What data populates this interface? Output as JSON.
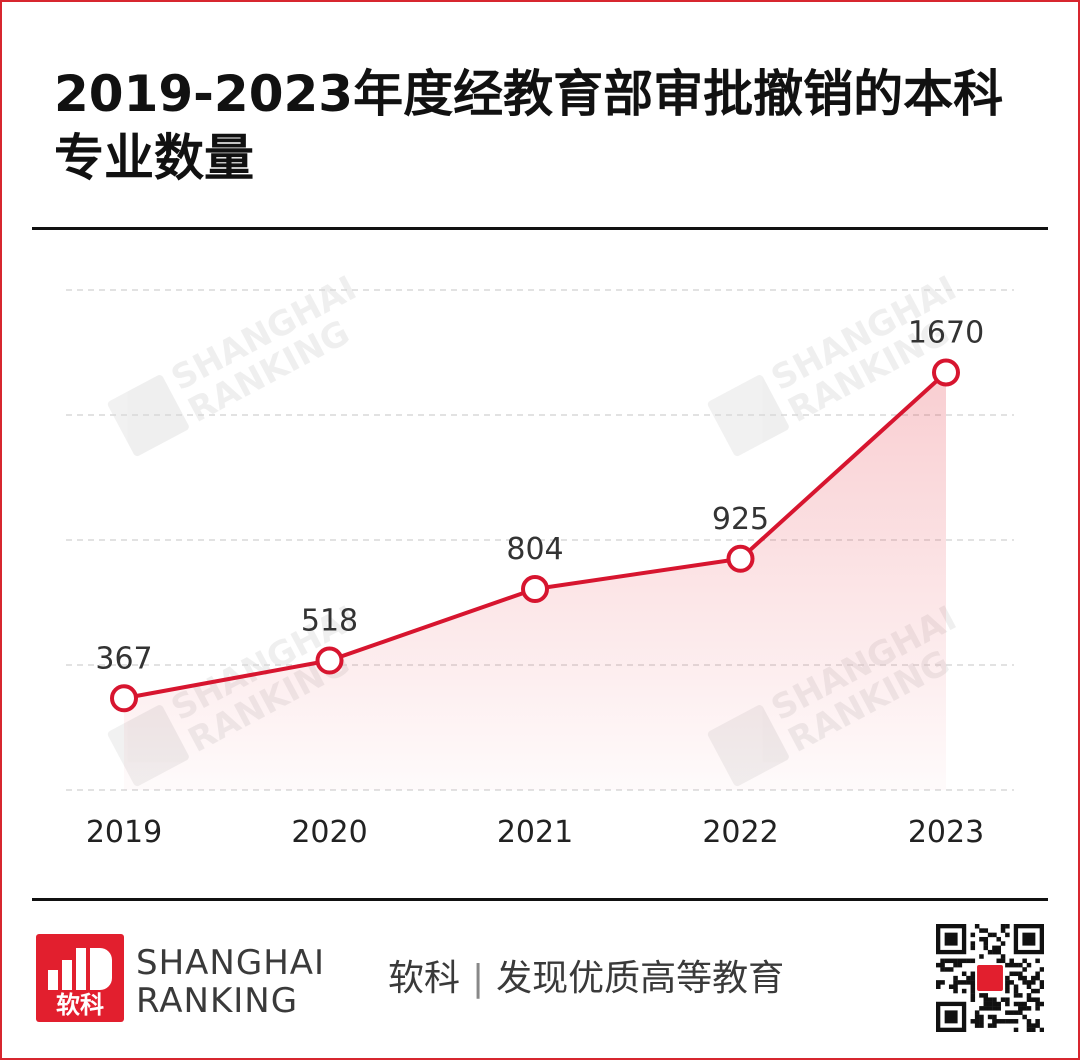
{
  "title": "2019-2023年度经教育部审批撤销的本科专业数量",
  "chart_data": {
    "type": "area",
    "title": "2019-2023年度经教育部审批撤销的本科专业数量",
    "categories": [
      "2019",
      "2020",
      "2021",
      "2022",
      "2023"
    ],
    "values": [
      367,
      518,
      804,
      925,
      1670
    ],
    "data_labels": [
      "367",
      "518",
      "804",
      "925",
      "1670"
    ],
    "ylim": [
      0,
      2000
    ],
    "grid": "horizontal dashed",
    "legend": "none",
    "line_color": "#d7152f",
    "fill_color": "#e21f2e"
  },
  "watermark": {
    "text_line1": "SHANGHAI",
    "text_line2": "RANKING",
    "icon_text": "软科"
  },
  "footer": {
    "logo_text": "软科",
    "brand_line1": "SHANGHAI",
    "brand_line2": "RANKING",
    "slogan_left": "软科",
    "slogan_sep": "|",
    "slogan_right": "发现优质高等教育"
  },
  "colors": {
    "accent": "#e21f2e",
    "border": "#d7262f",
    "text": "#111111"
  }
}
